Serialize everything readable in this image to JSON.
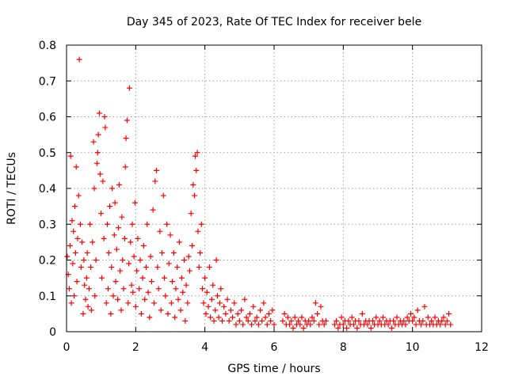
{
  "chart_data": {
    "type": "scatter",
    "title": "Day 345 of 2023, Rate Of TEC Index for receiver bele",
    "xlabel": "GPS time / hours",
    "ylabel": "ROTI / TECUs",
    "xlim": [
      0,
      12
    ],
    "ylim": [
      0,
      0.8
    ],
    "x_ticks": [
      0,
      2,
      4,
      6,
      8,
      10,
      12
    ],
    "y_ticks": [
      0,
      0.1,
      0.2,
      0.3,
      0.4,
      0.5,
      0.6,
      0.7,
      0.8
    ],
    "x_tick_labels": [
      "0",
      "2",
      "4",
      "6",
      "8",
      "10",
      "12"
    ],
    "y_tick_labels": [
      "0",
      "0.1",
      "0.2",
      "0.3",
      "0.4",
      "0.5",
      "0.6",
      "0.7",
      "0.8"
    ],
    "grid": true,
    "marker": "+",
    "color": "#ff0000",
    "points": [
      [
        0.02,
        0.21
      ],
      [
        0.05,
        0.16
      ],
      [
        0.08,
        0.12
      ],
      [
        0.1,
        0.24
      ],
      [
        0.12,
        0.49
      ],
      [
        0.14,
        0.08
      ],
      [
        0.16,
        0.31
      ],
      [
        0.18,
        0.19
      ],
      [
        0.2,
        0.28
      ],
      [
        0.22,
        0.1
      ],
      [
        0.24,
        0.35
      ],
      [
        0.26,
        0.22
      ],
      [
        0.28,
        0.46
      ],
      [
        0.3,
        0.14
      ],
      [
        0.32,
        0.26
      ],
      [
        0.35,
        0.38
      ],
      [
        0.37,
        0.76
      ],
      [
        0.4,
        0.3
      ],
      [
        0.42,
        0.18
      ],
      [
        0.45,
        0.25
      ],
      [
        0.48,
        0.05
      ],
      [
        0.5,
        0.2
      ],
      [
        0.52,
        0.13
      ],
      [
        0.55,
        0.09
      ],
      [
        0.58,
        0.15
      ],
      [
        0.6,
        0.22
      ],
      [
        0.62,
        0.07
      ],
      [
        0.65,
        0.12
      ],
      [
        0.68,
        0.3
      ],
      [
        0.7,
        0.18
      ],
      [
        0.72,
        0.06
      ],
      [
        0.75,
        0.25
      ],
      [
        0.78,
        0.53
      ],
      [
        0.8,
        0.4
      ],
      [
        0.82,
        0.1
      ],
      [
        0.85,
        0.2
      ],
      [
        0.88,
        0.47
      ],
      [
        0.9,
        0.5
      ],
      [
        0.92,
        0.55
      ],
      [
        0.95,
        0.61
      ],
      [
        0.97,
        0.44
      ],
      [
        1.0,
        0.33
      ],
      [
        1.02,
        0.15
      ],
      [
        1.05,
        0.42
      ],
      [
        1.08,
        0.26
      ],
      [
        1.1,
        0.6
      ],
      [
        1.12,
        0.57
      ],
      [
        1.15,
        0.08
      ],
      [
        1.18,
        0.3
      ],
      [
        1.2,
        0.12
      ],
      [
        1.22,
        0.22
      ],
      [
        1.25,
        0.35
      ],
      [
        1.28,
        0.05
      ],
      [
        1.3,
        0.18
      ],
      [
        1.32,
        0.4
      ],
      [
        1.35,
        0.1
      ],
      [
        1.38,
        0.27
      ],
      [
        1.4,
        0.36
      ],
      [
        1.42,
        0.14
      ],
      [
        1.45,
        0.23
      ],
      [
        1.48,
        0.09
      ],
      [
        1.5,
        0.29
      ],
      [
        1.52,
        0.41
      ],
      [
        1.55,
        0.17
      ],
      [
        1.58,
        0.06
      ],
      [
        1.6,
        0.32
      ],
      [
        1.62,
        0.2
      ],
      [
        1.65,
        0.12
      ],
      [
        1.68,
        0.26
      ],
      [
        1.7,
        0.46
      ],
      [
        1.72,
        0.54
      ],
      [
        1.75,
        0.59
      ],
      [
        1.78,
        0.08
      ],
      [
        1.8,
        0.19
      ],
      [
        1.82,
        0.68
      ],
      [
        1.85,
        0.25
      ],
      [
        1.88,
        0.13
      ],
      [
        1.9,
        0.3
      ],
      [
        1.92,
        0.11
      ],
      [
        1.95,
        0.21
      ],
      [
        1.98,
        0.36
      ],
      [
        2.0,
        0.07
      ],
      [
        2.03,
        0.17
      ],
      [
        2.06,
        0.26
      ],
      [
        2.1,
        0.12
      ],
      [
        2.13,
        0.2
      ],
      [
        2.16,
        0.05
      ],
      [
        2.2,
        0.15
      ],
      [
        2.23,
        0.24
      ],
      [
        2.26,
        0.09
      ],
      [
        2.3,
        0.18
      ],
      [
        2.33,
        0.3
      ],
      [
        2.36,
        0.11
      ],
      [
        2.4,
        0.04
      ],
      [
        2.43,
        0.21
      ],
      [
        2.46,
        0.14
      ],
      [
        2.5,
        0.34
      ],
      [
        2.53,
        0.08
      ],
      [
        2.56,
        0.42
      ],
      [
        2.6,
        0.45
      ],
      [
        2.63,
        0.18
      ],
      [
        2.66,
        0.12
      ],
      [
        2.7,
        0.28
      ],
      [
        2.73,
        0.06
      ],
      [
        2.76,
        0.22
      ],
      [
        2.8,
        0.38
      ],
      [
        2.83,
        0.15
      ],
      [
        2.86,
        0.1
      ],
      [
        2.9,
        0.3
      ],
      [
        2.93,
        0.05
      ],
      [
        2.96,
        0.19
      ],
      [
        3.0,
        0.27
      ],
      [
        3.03,
        0.08
      ],
      [
        3.06,
        0.14
      ],
      [
        3.1,
        0.22
      ],
      [
        3.13,
        0.04
      ],
      [
        3.16,
        0.12
      ],
      [
        3.2,
        0.18
      ],
      [
        3.23,
        0.09
      ],
      [
        3.26,
        0.25
      ],
      [
        3.3,
        0.06
      ],
      [
        3.33,
        0.15
      ],
      [
        3.36,
        0.11
      ],
      [
        3.4,
        0.2
      ],
      [
        3.43,
        0.03
      ],
      [
        3.46,
        0.13
      ],
      [
        3.5,
        0.08
      ],
      [
        3.53,
        0.21
      ],
      [
        3.56,
        0.17
      ],
      [
        3.6,
        0.33
      ],
      [
        3.63,
        0.24
      ],
      [
        3.66,
        0.41
      ],
      [
        3.7,
        0.38
      ],
      [
        3.72,
        0.49
      ],
      [
        3.75,
        0.45
      ],
      [
        3.78,
        0.5
      ],
      [
        3.8,
        0.28
      ],
      [
        3.83,
        0.18
      ],
      [
        3.86,
        0.22
      ],
      [
        3.9,
        0.3
      ],
      [
        3.93,
        0.12
      ],
      [
        3.96,
        0.08
      ],
      [
        4.0,
        0.15
      ],
      [
        4.03,
        0.05
      ],
      [
        4.06,
        0.11
      ],
      [
        4.1,
        0.07
      ],
      [
        4.13,
        0.18
      ],
      [
        4.16,
        0.04
      ],
      [
        4.2,
        0.09
      ],
      [
        4.23,
        0.13
      ],
      [
        4.26,
        0.03
      ],
      [
        4.3,
        0.06
      ],
      [
        4.33,
        0.2
      ],
      [
        4.36,
        0.1
      ],
      [
        4.4,
        0.04
      ],
      [
        4.43,
        0.08
      ],
      [
        4.46,
        0.12
      ],
      [
        4.5,
        0.03
      ],
      [
        4.55,
        0.07
      ],
      [
        4.6,
        0.05
      ],
      [
        4.65,
        0.09
      ],
      [
        4.7,
        0.03
      ],
      [
        4.75,
        0.06
      ],
      [
        4.8,
        0.04
      ],
      [
        4.85,
        0.08
      ],
      [
        4.9,
        0.02
      ],
      [
        4.95,
        0.05
      ],
      [
        5.0,
        0.03
      ],
      [
        5.05,
        0.06
      ],
      [
        5.1,
        0.02
      ],
      [
        5.15,
        0.09
      ],
      [
        5.2,
        0.04
      ],
      [
        5.25,
        0.03
      ],
      [
        5.3,
        0.05
      ],
      [
        5.35,
        0.02
      ],
      [
        5.4,
        0.07
      ],
      [
        5.45,
        0.03
      ],
      [
        5.5,
        0.04
      ],
      [
        5.55,
        0.02
      ],
      [
        5.6,
        0.06
      ],
      [
        5.65,
        0.03
      ],
      [
        5.7,
        0.08
      ],
      [
        5.75,
        0.04
      ],
      [
        5.8,
        0.02
      ],
      [
        5.85,
        0.05
      ],
      [
        5.9,
        0.03
      ],
      [
        5.95,
        0.06
      ],
      [
        6.0,
        0.02
      ],
      [
        6.25,
        0.03
      ],
      [
        6.3,
        0.05
      ],
      [
        6.35,
        0.02
      ],
      [
        6.4,
        0.04
      ],
      [
        6.45,
        0.02
      ],
      [
        6.5,
        0.03
      ],
      [
        6.55,
        0.01
      ],
      [
        6.6,
        0.04
      ],
      [
        6.65,
        0.02
      ],
      [
        6.7,
        0.03
      ],
      [
        6.75,
        0.02
      ],
      [
        6.8,
        0.04
      ],
      [
        6.85,
        0.01
      ],
      [
        6.9,
        0.03
      ],
      [
        6.95,
        0.02
      ],
      [
        7.0,
        0.03
      ],
      [
        7.05,
        0.02
      ],
      [
        7.1,
        0.04
      ],
      [
        7.15,
        0.03
      ],
      [
        7.2,
        0.08
      ],
      [
        7.25,
        0.05
      ],
      [
        7.3,
        0.02
      ],
      [
        7.35,
        0.07
      ],
      [
        7.4,
        0.03
      ],
      [
        7.45,
        0.02
      ],
      [
        7.5,
        0.03
      ],
      [
        7.75,
        0.02
      ],
      [
        7.8,
        0.03
      ],
      [
        7.85,
        0.01
      ],
      [
        7.9,
        0.02
      ],
      [
        7.95,
        0.04
      ],
      [
        8.0,
        0.02
      ],
      [
        8.05,
        0.03
      ],
      [
        8.1,
        0.01
      ],
      [
        8.15,
        0.03
      ],
      [
        8.2,
        0.02
      ],
      [
        8.25,
        0.04
      ],
      [
        8.3,
        0.02
      ],
      [
        8.35,
        0.03
      ],
      [
        8.4,
        0.01
      ],
      [
        8.45,
        0.03
      ],
      [
        8.5,
        0.02
      ],
      [
        8.55,
        0.05
      ],
      [
        8.6,
        0.02
      ],
      [
        8.65,
        0.03
      ],
      [
        8.7,
        0.02
      ],
      [
        8.75,
        0.03
      ],
      [
        8.8,
        0.01
      ],
      [
        8.85,
        0.03
      ],
      [
        8.9,
        0.02
      ],
      [
        8.95,
        0.04
      ],
      [
        9.0,
        0.02
      ],
      [
        9.05,
        0.03
      ],
      [
        9.1,
        0.02
      ],
      [
        9.15,
        0.04
      ],
      [
        9.2,
        0.02
      ],
      [
        9.25,
        0.03
      ],
      [
        9.3,
        0.02
      ],
      [
        9.35,
        0.03
      ],
      [
        9.4,
        0.01
      ],
      [
        9.45,
        0.03
      ],
      [
        9.5,
        0.02
      ],
      [
        9.55,
        0.04
      ],
      [
        9.6,
        0.02
      ],
      [
        9.65,
        0.03
      ],
      [
        9.7,
        0.02
      ],
      [
        9.75,
        0.03
      ],
      [
        9.8,
        0.02
      ],
      [
        9.85,
        0.04
      ],
      [
        9.9,
        0.03
      ],
      [
        9.95,
        0.05
      ],
      [
        10.0,
        0.03
      ],
      [
        10.05,
        0.04
      ],
      [
        10.1,
        0.02
      ],
      [
        10.15,
        0.06
      ],
      [
        10.2,
        0.03
      ],
      [
        10.25,
        0.02
      ],
      [
        10.3,
        0.03
      ],
      [
        10.35,
        0.07
      ],
      [
        10.4,
        0.02
      ],
      [
        10.45,
        0.04
      ],
      [
        10.5,
        0.02
      ],
      [
        10.55,
        0.03
      ],
      [
        10.6,
        0.02
      ],
      [
        10.65,
        0.04
      ],
      [
        10.7,
        0.02
      ],
      [
        10.75,
        0.03
      ],
      [
        10.8,
        0.02
      ],
      [
        10.85,
        0.03
      ],
      [
        10.9,
        0.04
      ],
      [
        10.95,
        0.02
      ],
      [
        11.0,
        0.03
      ],
      [
        11.05,
        0.05
      ],
      [
        11.1,
        0.02
      ]
    ]
  }
}
